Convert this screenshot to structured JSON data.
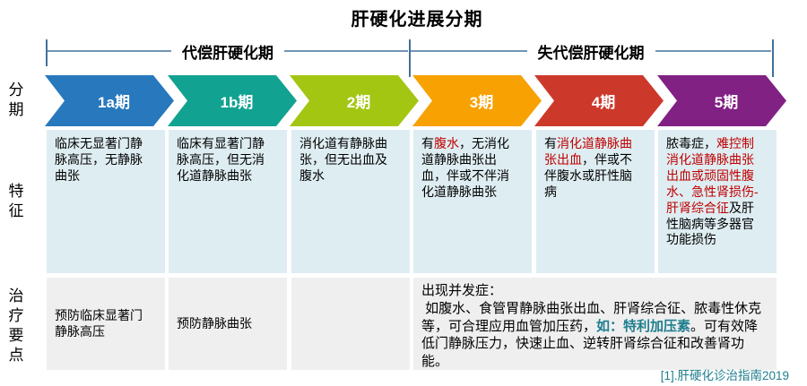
{
  "title": "肝硬化进展分期",
  "phases": [
    {
      "label": "代偿肝硬化期"
    },
    {
      "label": "失代偿肝硬化期"
    }
  ],
  "row_labels": {
    "staging": "分期",
    "features": "特征",
    "treatment": "治疗要点"
  },
  "stages": [
    {
      "label": "1a期",
      "color": "#2878BE"
    },
    {
      "label": "1b期",
      "color": "#12A291"
    },
    {
      "label": "2期",
      "color": "#A3C613"
    },
    {
      "label": "3期",
      "color": "#F7A102"
    },
    {
      "label": "4期",
      "color": "#CC392B"
    },
    {
      "label": "5期",
      "color": "#812184"
    }
  ],
  "features": [
    {
      "segments": [
        {
          "text": "临床无显著门静脉高压，无静脉曲张",
          "style": "normal"
        }
      ]
    },
    {
      "segments": [
        {
          "text": "临床有显著门静脉高压，但无消化道静脉曲张",
          "style": "normal"
        }
      ]
    },
    {
      "segments": [
        {
          "text": "消化道有静脉曲张，但无出血及腹水",
          "style": "normal"
        }
      ]
    },
    {
      "segments": [
        {
          "text": "有",
          "style": "normal"
        },
        {
          "text": "腹水",
          "style": "red"
        },
        {
          "text": "，无消化道静脉曲张出血，伴或不伴消化道静脉曲张",
          "style": "normal"
        }
      ]
    },
    {
      "segments": [
        {
          "text": "有",
          "style": "normal"
        },
        {
          "text": "消化道静脉曲张出血",
          "style": "red"
        },
        {
          "text": "，伴或不伴腹水或肝性脑病",
          "style": "normal"
        }
      ]
    },
    {
      "segments": [
        {
          "text": "脓毒症，",
          "style": "normal"
        },
        {
          "text": "难控制消化道静脉曲张出血或顽固性腹水、急性肾损伤-肝肾综合征",
          "style": "red"
        },
        {
          "text": "及肝性脑病等多器官功能损伤",
          "style": "normal"
        }
      ]
    }
  ],
  "treatment": {
    "cells": [
      {
        "text": "预防临床显著门静脉高压"
      },
      {
        "text": "预防静脉曲张"
      },
      {
        "text": ""
      }
    ],
    "merged": {
      "segments": [
        {
          "text": "出现并发症：\n 如腹水、食管胃静脉曲张出血、肝肾综合征、脓毒性休克等，可合理应用血管加压药，",
          "style": "normal"
        },
        {
          "text": "如：特利加压素",
          "style": "accent"
        },
        {
          "text": "。可有效降低门静脉压力，快速止血、逆转肝肾综合征和改善肾功能。",
          "style": "normal"
        }
      ]
    }
  },
  "footer": "[1].肝硬化诊治指南2019",
  "colors": {
    "red_text": "#C00000",
    "accent_text": "#1F7E8E",
    "bracket": "#41719C",
    "cell_blue": "#DEEDF2",
    "cell_gray": "#EFEFEF"
  }
}
